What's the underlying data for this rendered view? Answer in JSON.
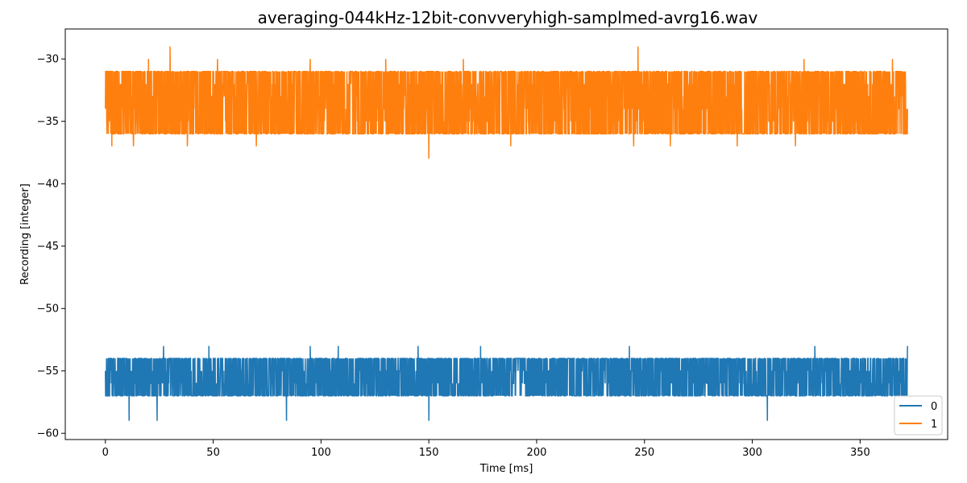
{
  "chart_data": {
    "type": "line",
    "title": "averaging-044kHz-12bit-convveryhigh-samplmed-avrg16.wav",
    "xlabel": "Time [ms]",
    "ylabel": "Recording [integer]",
    "xlim": [
      -18.6,
      390.6
    ],
    "ylim": [
      -60.5,
      -27.6
    ],
    "x_ticks": [
      0,
      50,
      100,
      150,
      200,
      250,
      300,
      350
    ],
    "y_ticks": [
      -60,
      -55,
      -50,
      -45,
      -40,
      -35,
      -30
    ],
    "x_range": [
      0,
      372
    ],
    "grid": false,
    "legend": "bottom-right",
    "series": [
      {
        "name": "0",
        "color": "#1f77b4",
        "values": [
          -57,
          -55,
          -56,
          -57,
          -55,
          -56,
          -54,
          -57,
          -55,
          -56,
          -57,
          -54,
          -56,
          -55,
          -57,
          -56,
          -55,
          -57,
          -56,
          -54,
          -55,
          -57,
          -56,
          -55,
          -57,
          -56,
          -55,
          -54,
          -57,
          -56,
          -55,
          -57,
          -56,
          -55,
          -57,
          -54,
          -56,
          -55,
          -57,
          -56,
          -55,
          -57,
          -56,
          -55,
          -54,
          -57,
          -56,
          -55,
          -57,
          -56
        ],
        "dense_sampling": true,
        "typical_range": [
          -57,
          -54
        ],
        "observed_min": -59,
        "observed_max": -53,
        "peaks": [
          {
            "x": 11,
            "y": -53
          },
          {
            "x": 27,
            "y": -53
          },
          {
            "x": 48,
            "y": -53
          },
          {
            "x": 95,
            "y": -53
          },
          {
            "x": 108,
            "y": -53
          },
          {
            "x": 145,
            "y": -53
          },
          {
            "x": 174,
            "y": -53
          },
          {
            "x": 243,
            "y": -53
          },
          {
            "x": 329,
            "y": -53
          },
          {
            "x": 372,
            "y": -53
          }
        ],
        "troughs": [
          {
            "x": 11,
            "y": -59
          },
          {
            "x": 24,
            "y": -59
          },
          {
            "x": 84,
            "y": -59
          },
          {
            "x": 150,
            "y": -59
          },
          {
            "x": 307,
            "y": -59
          }
        ]
      },
      {
        "name": "1",
        "color": "#ff7f0e",
        "values": [
          -34,
          -33,
          -35,
          -31,
          -34,
          -32,
          -35,
          -33,
          -31,
          -34,
          -36,
          -32,
          -33,
          -35,
          -31,
          -34,
          -33,
          -32,
          -35,
          -34,
          -31,
          -33,
          -36,
          -32,
          -34,
          -33,
          -35,
          -31,
          -34,
          -32,
          -33,
          -35,
          -34,
          -31,
          -33,
          -36,
          -32,
          -34,
          -33,
          -35,
          -31,
          -34,
          -33,
          -32,
          -35,
          -34,
          -31,
          -33,
          -35,
          -32
        ],
        "dense_sampling": true,
        "typical_range": [
          -36,
          -31
        ],
        "observed_min": -38,
        "observed_max": -29,
        "peaks": [
          {
            "x": 3,
            "y": -30
          },
          {
            "x": 20,
            "y": -30
          },
          {
            "x": 30,
            "y": -29
          },
          {
            "x": 52,
            "y": -30
          },
          {
            "x": 95,
            "y": -30
          },
          {
            "x": 130,
            "y": -30
          },
          {
            "x": 166,
            "y": -30
          },
          {
            "x": 247,
            "y": -29
          },
          {
            "x": 324,
            "y": -30
          },
          {
            "x": 365,
            "y": -30
          }
        ],
        "troughs": [
          {
            "x": 3,
            "y": -37
          },
          {
            "x": 13,
            "y": -37
          },
          {
            "x": 38,
            "y": -37
          },
          {
            "x": 70,
            "y": -37
          },
          {
            "x": 150,
            "y": -38
          },
          {
            "x": 188,
            "y": -37
          },
          {
            "x": 245,
            "y": -37
          },
          {
            "x": 262,
            "y": -37
          },
          {
            "x": 293,
            "y": -37
          },
          {
            "x": 320,
            "y": -37
          }
        ]
      }
    ]
  }
}
